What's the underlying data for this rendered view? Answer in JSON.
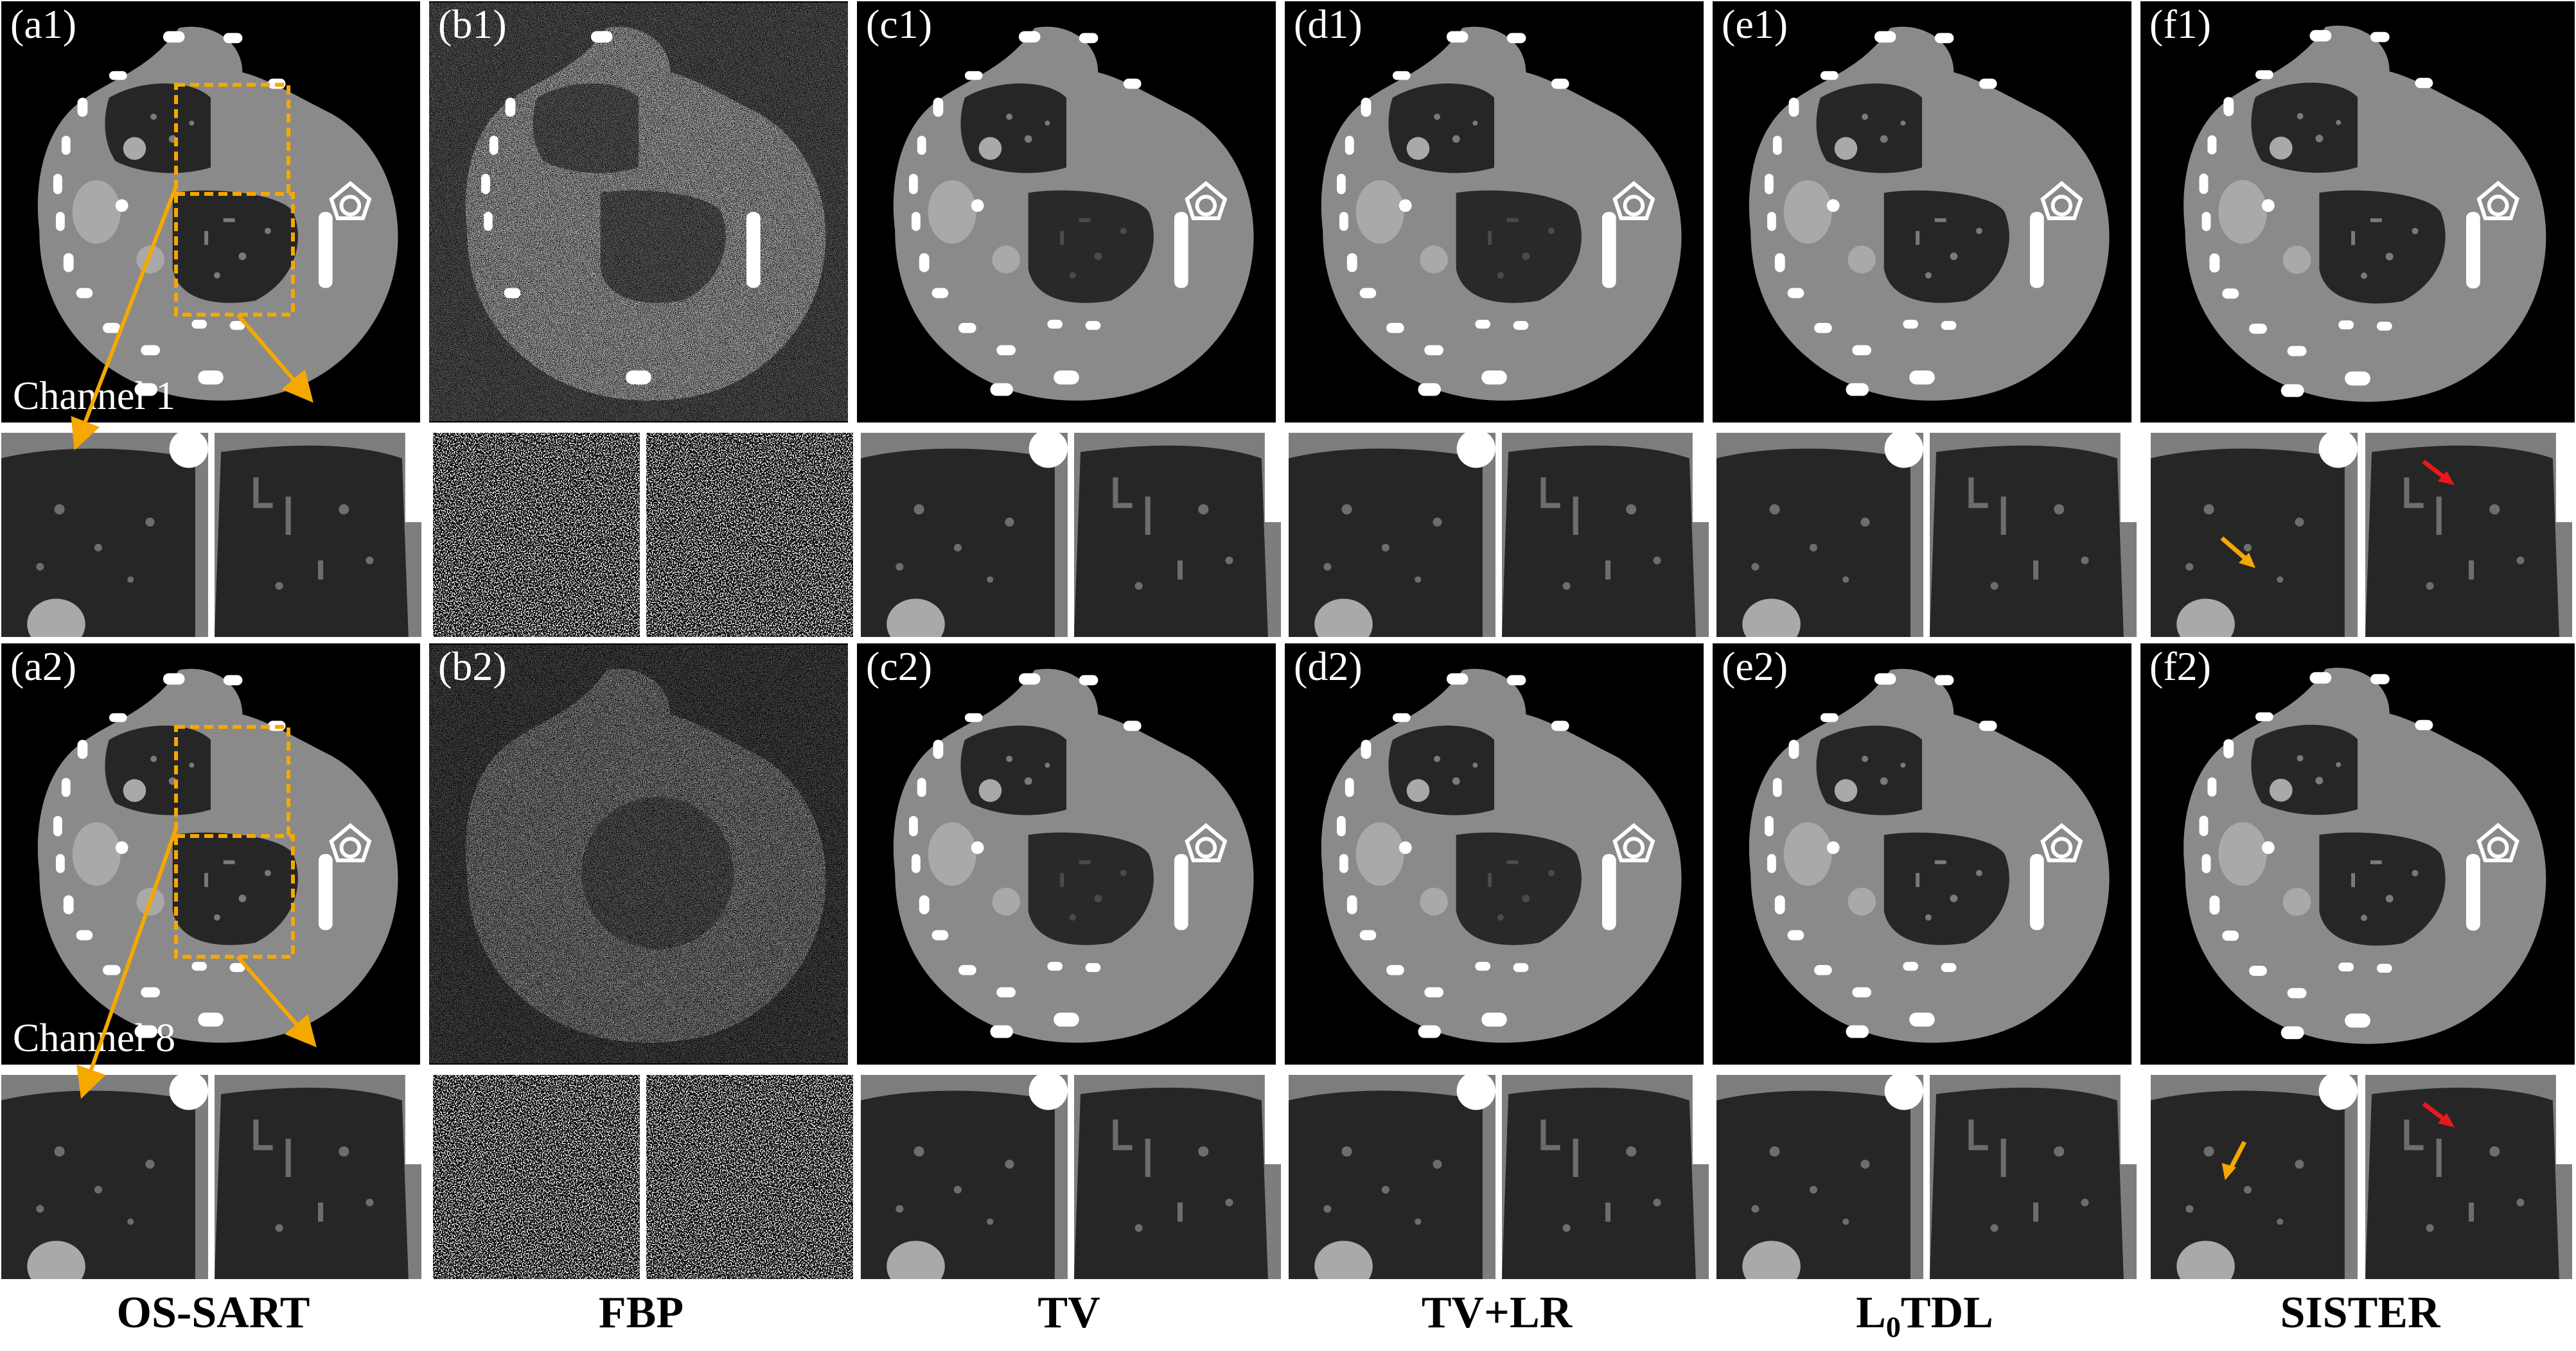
{
  "rows": [
    {
      "channel_label": "Channel  1",
      "panel_labels": [
        "(a1)",
        "(b1)",
        "(c1)",
        "(d1)",
        "(e1)",
        "(f1)"
      ]
    },
    {
      "channel_label": "Channel  8",
      "panel_labels": [
        "(a2)",
        "(b2)",
        "(c2)",
        "(d2)",
        "(e2)",
        "(f2)"
      ]
    }
  ],
  "methods": [
    "OS-SART",
    "FBP",
    "TV",
    "TV+LR",
    "L",
    "SISTER"
  ],
  "l0tdl": {
    "prefix": "L",
    "subscript": "0",
    "suffix": "TDL"
  },
  "colors": {
    "tissue": "#8a8a8a",
    "lung": "#262626",
    "bone": "#ffffff",
    "roi_box": "#f5a800",
    "arrow_orange": "#f5a800",
    "arrow_red": "#e8191c"
  }
}
